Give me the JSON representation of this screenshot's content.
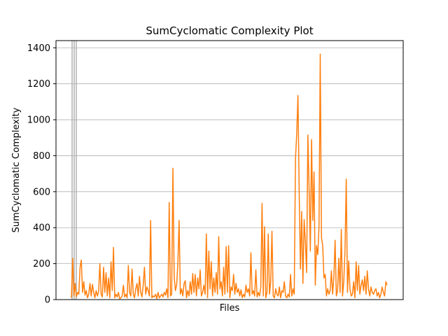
{
  "chart_data": {
    "type": "line",
    "title": "SumCyclomatic Complexity Plot",
    "xlabel": "Files",
    "ylabel": "SumCyclomatic Complexity",
    "ylim": [
      0,
      1440
    ],
    "yticks": [
      0,
      200,
      400,
      600,
      800,
      1000,
      1200,
      1400
    ],
    "grid": "horizontal",
    "x_tick_labels": "none",
    "series": [
      {
        "color": "#ff7f0e",
        "values": [
          10,
          230,
          20,
          90,
          15,
          40,
          30,
          180,
          220,
          40,
          100,
          25,
          50,
          10,
          30,
          90,
          20,
          85,
          40,
          10,
          50,
          20,
          45,
          200,
          30,
          15,
          180,
          40,
          150,
          20,
          120,
          10,
          210,
          50,
          290,
          10,
          30,
          15,
          40,
          5,
          10,
          20,
          80,
          15,
          30,
          10,
          190,
          40,
          20,
          170,
          30,
          10,
          60,
          90,
          20,
          130,
          40,
          15,
          80,
          180,
          30,
          70,
          50,
          20,
          440,
          10,
          20,
          15,
          30,
          5,
          40,
          10,
          20,
          30,
          15,
          40,
          25,
          60,
          10,
          540,
          20,
          30,
          730,
          130,
          50,
          80,
          200,
          440,
          30,
          60,
          20,
          90,
          105,
          10,
          50,
          20,
          100,
          30,
          145,
          40,
          140,
          20,
          120,
          60,
          165,
          20,
          40,
          80,
          30,
          365,
          10,
          270,
          60,
          210,
          20,
          120,
          40,
          150,
          30,
          350,
          60,
          100,
          20,
          180,
          30,
          295,
          40,
          300,
          10,
          70,
          50,
          140,
          30,
          90,
          40,
          60,
          20,
          55,
          10,
          30,
          15,
          80,
          40,
          60,
          20,
          260,
          30,
          50,
          20,
          165,
          15,
          40,
          20,
          70,
          535,
          20,
          405,
          10,
          40,
          365,
          30,
          100,
          380,
          20,
          10,
          60,
          30,
          20,
          70,
          10,
          50,
          40,
          100,
          20,
          10,
          30,
          15,
          140,
          20,
          60,
          30,
          785,
          920,
          1135,
          590,
          170,
          490,
          90,
          445,
          320,
          150,
          915,
          620,
          270,
          890,
          440,
          710,
          80,
          300,
          250,
          405,
          1365,
          345,
          300,
          120,
          140,
          20,
          60,
          30,
          50,
          160,
          30,
          125,
          330,
          20,
          50,
          230,
          40,
          390,
          20,
          100,
          270,
          670,
          40,
          215,
          60,
          20,
          30,
          100,
          10,
          210,
          50,
          190,
          30,
          80,
          110,
          50,
          130,
          30,
          160,
          60,
          20,
          70,
          40,
          30,
          50,
          60,
          20,
          40,
          10,
          30,
          70,
          40,
          20,
          100,
          80
        ]
      }
    ],
    "spikes": {
      "color": "#b0b0b0",
      "values": [
        1440,
        1440,
        1440
      ]
    }
  }
}
